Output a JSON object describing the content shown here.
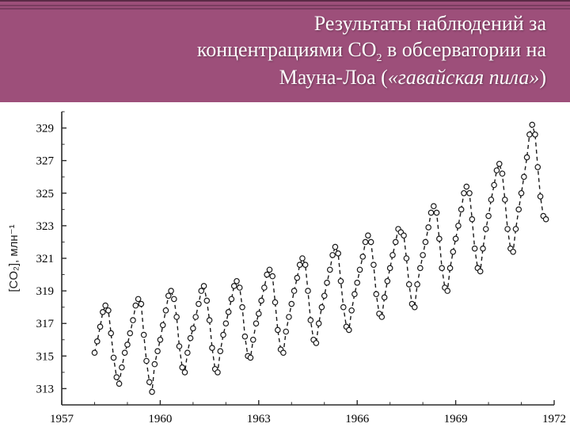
{
  "header": {
    "line1": "Результаты наблюдений за",
    "line2_a": "концентрациями СО",
    "line2_sub": "2",
    "line2_b": " в обсерватории на",
    "line3_a": "Мауна-Лоа (",
    "line3_italic": "«гавайская пила»",
    "line3_b": ")",
    "bg_color": "#9d4f7a",
    "text_color": "#fdfdfd",
    "fontsize": 26
  },
  "chart": {
    "type": "line",
    "background_color": "#ffffff",
    "series_color": "#1a1a1a",
    "marker": "circle",
    "marker_size": 3.2,
    "marker_stroke": "#1a1a1a",
    "marker_fill": "#ffffff",
    "line_dash": "5,4",
    "line_width": 1.4,
    "axis_color": "#2a2a2a",
    "tick_fontsize": 15,
    "ylabel": "[CO₂], млн⁻¹",
    "ylabel_fontsize": 15,
    "xlim": [
      1957,
      1972
    ],
    "ylim": [
      312,
      330
    ],
    "xticks": [
      1957,
      1960,
      1963,
      1966,
      1969,
      1972
    ],
    "yticks": [
      313,
      315,
      317,
      319,
      321,
      323,
      325,
      327,
      329
    ],
    "inner_tick_len": 6,
    "data": [
      [
        1958.0,
        315.2
      ],
      [
        1958.08,
        315.9
      ],
      [
        1958.17,
        316.8
      ],
      [
        1958.25,
        317.7
      ],
      [
        1958.33,
        318.1
      ],
      [
        1958.42,
        317.8
      ],
      [
        1958.5,
        316.4
      ],
      [
        1958.58,
        314.9
      ],
      [
        1958.67,
        313.7
      ],
      [
        1958.75,
        313.3
      ],
      [
        1958.83,
        314.3
      ],
      [
        1958.92,
        315.2
      ],
      [
        1959.0,
        315.7
      ],
      [
        1959.08,
        316.4
      ],
      [
        1959.17,
        317.2
      ],
      [
        1959.25,
        318.1
      ],
      [
        1959.33,
        318.5
      ],
      [
        1959.42,
        318.2
      ],
      [
        1959.5,
        316.3
      ],
      [
        1959.58,
        314.7
      ],
      [
        1959.67,
        313.4
      ],
      [
        1959.75,
        312.8
      ],
      [
        1959.83,
        314.5
      ],
      [
        1959.92,
        315.3
      ],
      [
        1960.0,
        316.0
      ],
      [
        1960.08,
        316.9
      ],
      [
        1960.17,
        317.8
      ],
      [
        1960.25,
        318.7
      ],
      [
        1960.33,
        319.0
      ],
      [
        1960.42,
        318.5
      ],
      [
        1960.5,
        317.4
      ],
      [
        1960.58,
        315.6
      ],
      [
        1960.67,
        314.3
      ],
      [
        1960.75,
        314.0
      ],
      [
        1960.83,
        315.2
      ],
      [
        1960.92,
        316.1
      ],
      [
        1961.0,
        316.7
      ],
      [
        1961.08,
        317.4
      ],
      [
        1961.17,
        318.2
      ],
      [
        1961.25,
        319.0
      ],
      [
        1961.33,
        319.3
      ],
      [
        1961.42,
        318.4
      ],
      [
        1961.5,
        317.2
      ],
      [
        1961.58,
        315.5
      ],
      [
        1961.67,
        314.2
      ],
      [
        1961.75,
        314.0
      ],
      [
        1961.83,
        315.3
      ],
      [
        1961.92,
        316.3
      ],
      [
        1962.0,
        317.0
      ],
      [
        1962.08,
        317.7
      ],
      [
        1962.17,
        318.5
      ],
      [
        1962.25,
        319.3
      ],
      [
        1962.33,
        319.6
      ],
      [
        1962.42,
        319.2
      ],
      [
        1962.5,
        318.0
      ],
      [
        1962.58,
        316.2
      ],
      [
        1962.67,
        315.0
      ],
      [
        1962.75,
        314.9
      ],
      [
        1962.83,
        316.0
      ],
      [
        1962.92,
        317.0
      ],
      [
        1963.0,
        317.6
      ],
      [
        1963.08,
        318.4
      ],
      [
        1963.17,
        319.2
      ],
      [
        1963.25,
        320.0
      ],
      [
        1963.33,
        320.3
      ],
      [
        1963.42,
        319.9
      ],
      [
        1963.5,
        318.3
      ],
      [
        1963.58,
        316.6
      ],
      [
        1963.67,
        315.4
      ],
      [
        1963.75,
        315.2
      ],
      [
        1963.83,
        316.5
      ],
      [
        1963.92,
        317.4
      ],
      [
        1964.0,
        318.2
      ],
      [
        1964.08,
        319.0
      ],
      [
        1964.17,
        319.8
      ],
      [
        1964.25,
        320.6
      ],
      [
        1964.33,
        321.0
      ],
      [
        1964.42,
        320.6
      ],
      [
        1964.5,
        319.0
      ],
      [
        1964.58,
        317.2
      ],
      [
        1964.67,
        316.0
      ],
      [
        1964.75,
        315.8
      ],
      [
        1964.83,
        317.0
      ],
      [
        1964.92,
        318.0
      ],
      [
        1965.0,
        318.7
      ],
      [
        1965.08,
        319.5
      ],
      [
        1965.17,
        320.3
      ],
      [
        1965.25,
        321.2
      ],
      [
        1965.33,
        321.7
      ],
      [
        1965.42,
        321.3
      ],
      [
        1965.5,
        319.6
      ],
      [
        1965.58,
        318.0
      ],
      [
        1965.67,
        316.8
      ],
      [
        1965.75,
        316.6
      ],
      [
        1965.83,
        317.8
      ],
      [
        1965.92,
        318.8
      ],
      [
        1966.0,
        319.5
      ],
      [
        1966.08,
        320.3
      ],
      [
        1966.17,
        321.1
      ],
      [
        1966.25,
        322.0
      ],
      [
        1966.33,
        322.4
      ],
      [
        1966.42,
        322.0
      ],
      [
        1966.5,
        320.6
      ],
      [
        1966.58,
        318.8
      ],
      [
        1966.67,
        317.6
      ],
      [
        1966.75,
        317.4
      ],
      [
        1966.83,
        318.6
      ],
      [
        1966.92,
        319.6
      ],
      [
        1967.0,
        320.4
      ],
      [
        1967.08,
        321.2
      ],
      [
        1967.17,
        322.0
      ],
      [
        1967.25,
        322.8
      ],
      [
        1967.33,
        322.6
      ],
      [
        1967.42,
        322.4
      ],
      [
        1967.5,
        321.0
      ],
      [
        1967.58,
        319.4
      ],
      [
        1967.67,
        318.2
      ],
      [
        1967.75,
        318.0
      ],
      [
        1967.83,
        319.4
      ],
      [
        1967.92,
        320.4
      ],
      [
        1968.0,
        321.2
      ],
      [
        1968.08,
        322.0
      ],
      [
        1968.17,
        322.9
      ],
      [
        1968.25,
        323.8
      ],
      [
        1968.33,
        324.2
      ],
      [
        1968.42,
        323.8
      ],
      [
        1968.5,
        322.2
      ],
      [
        1968.58,
        320.4
      ],
      [
        1968.67,
        319.2
      ],
      [
        1968.75,
        319.0
      ],
      [
        1968.83,
        320.4
      ],
      [
        1968.92,
        321.4
      ],
      [
        1969.0,
        322.2
      ],
      [
        1969.08,
        323.0
      ],
      [
        1969.17,
        324.0
      ],
      [
        1969.25,
        325.0
      ],
      [
        1969.33,
        325.4
      ],
      [
        1969.42,
        325.0
      ],
      [
        1969.5,
        323.4
      ],
      [
        1969.58,
        321.6
      ],
      [
        1969.67,
        320.4
      ],
      [
        1969.75,
        320.2
      ],
      [
        1969.83,
        321.6
      ],
      [
        1969.92,
        322.8
      ],
      [
        1970.0,
        323.6
      ],
      [
        1970.08,
        324.6
      ],
      [
        1970.17,
        325.5
      ],
      [
        1970.25,
        326.4
      ],
      [
        1970.33,
        326.8
      ],
      [
        1970.42,
        326.2
      ],
      [
        1970.5,
        324.6
      ],
      [
        1970.58,
        322.8
      ],
      [
        1970.67,
        321.6
      ],
      [
        1970.75,
        321.4
      ],
      [
        1970.83,
        322.8
      ],
      [
        1970.92,
        324.0
      ],
      [
        1971.0,
        325.0
      ],
      [
        1971.08,
        326.0
      ],
      [
        1971.17,
        327.2
      ],
      [
        1971.25,
        328.6
      ],
      [
        1971.33,
        329.2
      ],
      [
        1971.42,
        328.6
      ],
      [
        1971.5,
        326.6
      ],
      [
        1971.58,
        324.8
      ],
      [
        1971.67,
        323.6
      ],
      [
        1971.75,
        323.4
      ]
    ]
  }
}
